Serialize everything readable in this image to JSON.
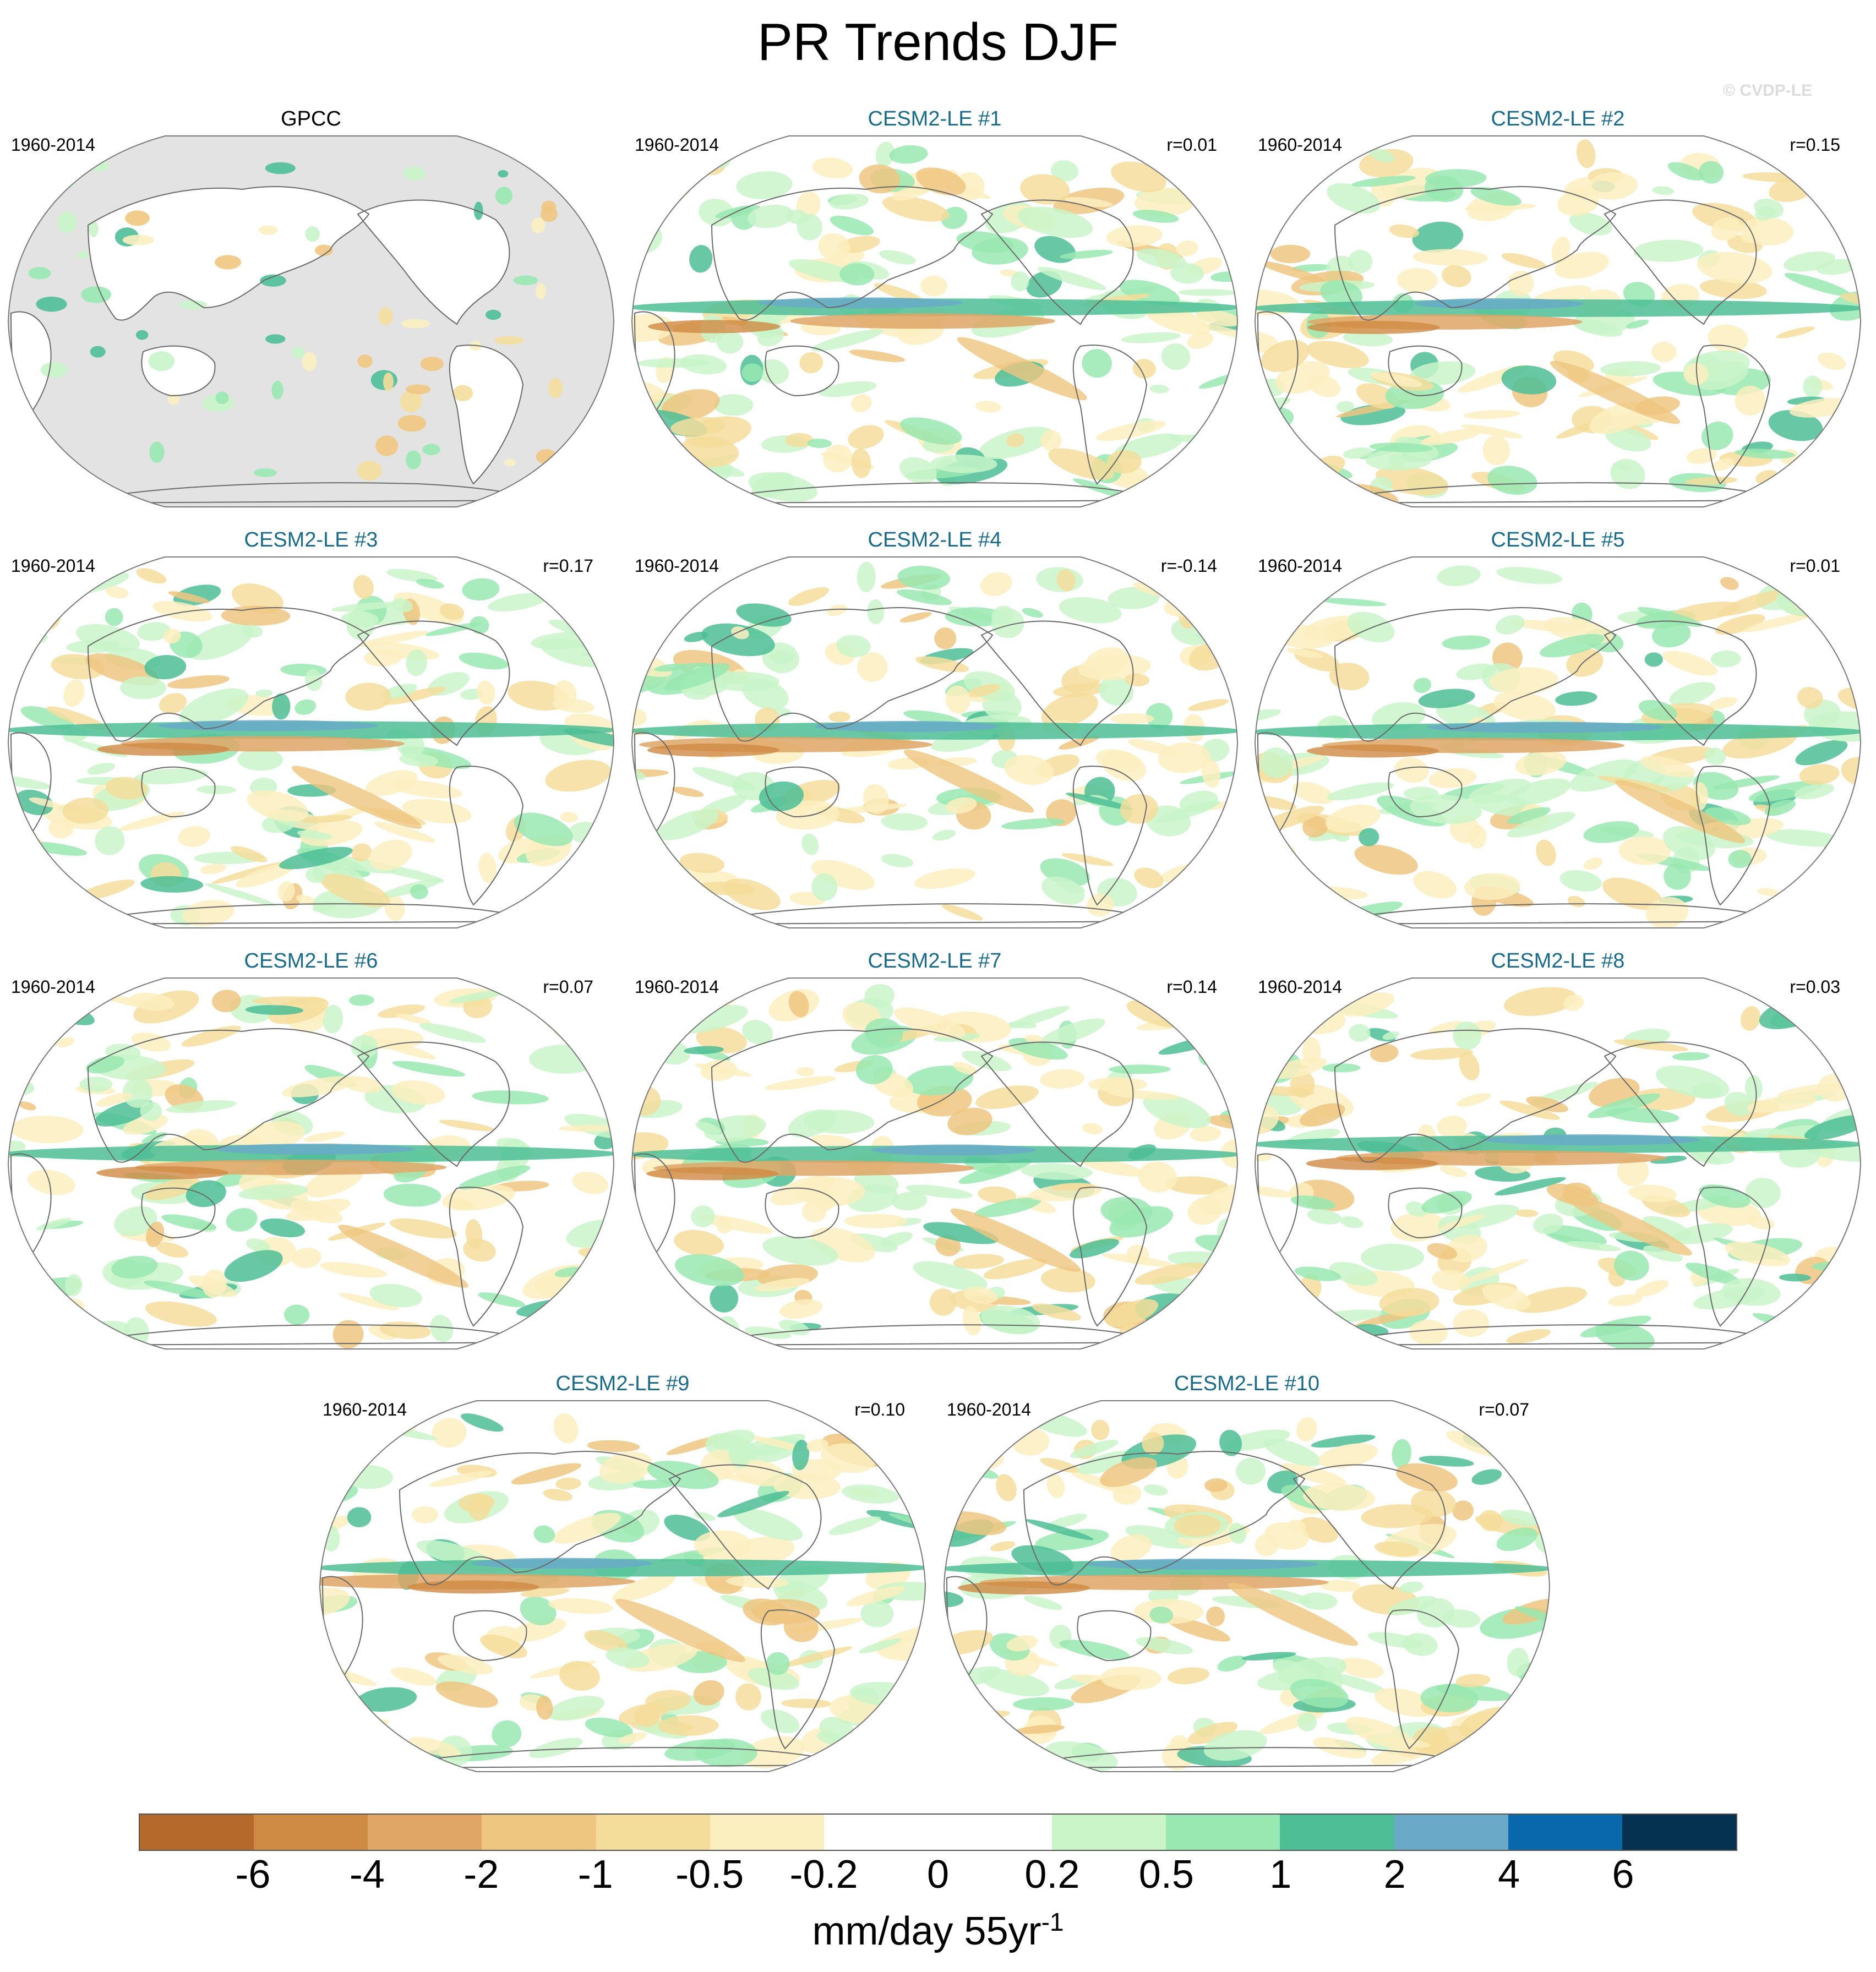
{
  "title": "PR Trends DJF",
  "watermark": "© CVDP-LE",
  "panels": [
    {
      "title": "GPCC",
      "period": "1960-2014",
      "r": "",
      "kind": "obs"
    },
    {
      "title": "CESM2-LE #1",
      "period": "1960-2014",
      "r": "r=0.01",
      "kind": "model"
    },
    {
      "title": "CESM2-LE #2",
      "period": "1960-2014",
      "r": "r=0.15",
      "kind": "model"
    },
    {
      "title": "CESM2-LE #3",
      "period": "1960-2014",
      "r": "r=0.17",
      "kind": "model"
    },
    {
      "title": "CESM2-LE #4",
      "period": "1960-2014",
      "r": "r=-0.14",
      "kind": "model"
    },
    {
      "title": "CESM2-LE #5",
      "period": "1960-2014",
      "r": "r=0.01",
      "kind": "model"
    },
    {
      "title": "CESM2-LE #6",
      "period": "1960-2014",
      "r": "r=0.07",
      "kind": "model"
    },
    {
      "title": "CESM2-LE #7",
      "period": "1960-2014",
      "r": "r=0.14",
      "kind": "model"
    },
    {
      "title": "CESM2-LE #8",
      "period": "1960-2014",
      "r": "r=0.03",
      "kind": "model"
    },
    {
      "title": "CESM2-LE #9",
      "period": "1960-2014",
      "r": "r=0.10",
      "kind": "model"
    },
    {
      "title": "CESM2-LE #10",
      "period": "1960-2014",
      "r": "r=0.07",
      "kind": "model"
    }
  ],
  "colorbar": {
    "colors": [
      "#b5692b",
      "#cf8a44",
      "#dfa666",
      "#efc680",
      "#f4dd9b",
      "#fbefc0",
      "#ffffff",
      "#ffffff",
      "#c9f5c9",
      "#99e8b2",
      "#4ebe97",
      "#6aaac8",
      "#0868ab",
      "#063251"
    ],
    "labels": [
      "-6",
      "-4",
      "-2",
      "-1",
      "-0.5",
      "-0.2",
      "0",
      "0.2",
      "0.5",
      "1",
      "2",
      "4",
      "6"
    ],
    "unit": "mm/day 55yr",
    "unit_exponent": "-1"
  },
  "colors": {
    "missing": "#e3e3e3",
    "panel_title_model": "#1a6a8a",
    "panel_title_obs": "#000000"
  }
}
